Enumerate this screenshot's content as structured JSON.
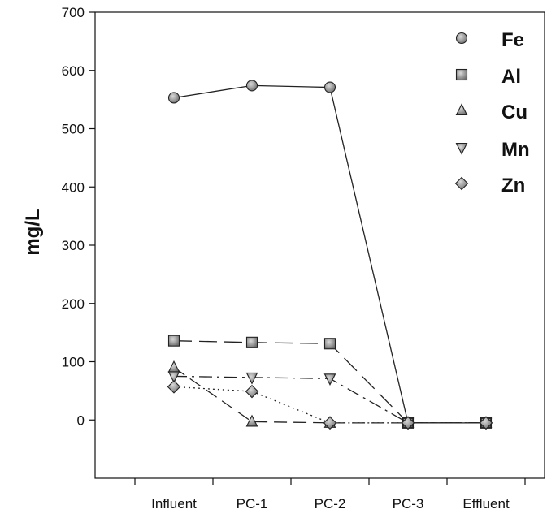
{
  "chart_data": {
    "type": "line",
    "title": "",
    "xlabel": "",
    "ylabel": "mg/L",
    "categories": [
      "Influent",
      "PC-1",
      "PC-2",
      "PC-3",
      "Effluent"
    ],
    "ylim": [
      -100,
      700
    ],
    "yticks": [
      0,
      100,
      200,
      300,
      400,
      500,
      600,
      700
    ],
    "grid": false,
    "legend_position": "top-right",
    "series": [
      {
        "name": "Fe",
        "marker": "circle",
        "line_style": "solid",
        "values": [
          553,
          574,
          571,
          -5,
          -5
        ]
      },
      {
        "name": "Al",
        "marker": "square",
        "line_style": "long-dash",
        "values": [
          136,
          133,
          131,
          -5,
          -5
        ]
      },
      {
        "name": "Cu",
        "marker": "triangle-up",
        "line_style": "dash",
        "values": [
          90,
          -3,
          -5,
          -5,
          -5
        ]
      },
      {
        "name": "Mn",
        "marker": "triangle-down",
        "line_style": "dash-dot",
        "values": [
          75,
          73,
          71,
          -5,
          -5
        ]
      },
      {
        "name": "Zn",
        "marker": "diamond",
        "line_style": "dotted",
        "values": [
          57,
          49,
          -5,
          -5,
          -5
        ]
      }
    ]
  }
}
